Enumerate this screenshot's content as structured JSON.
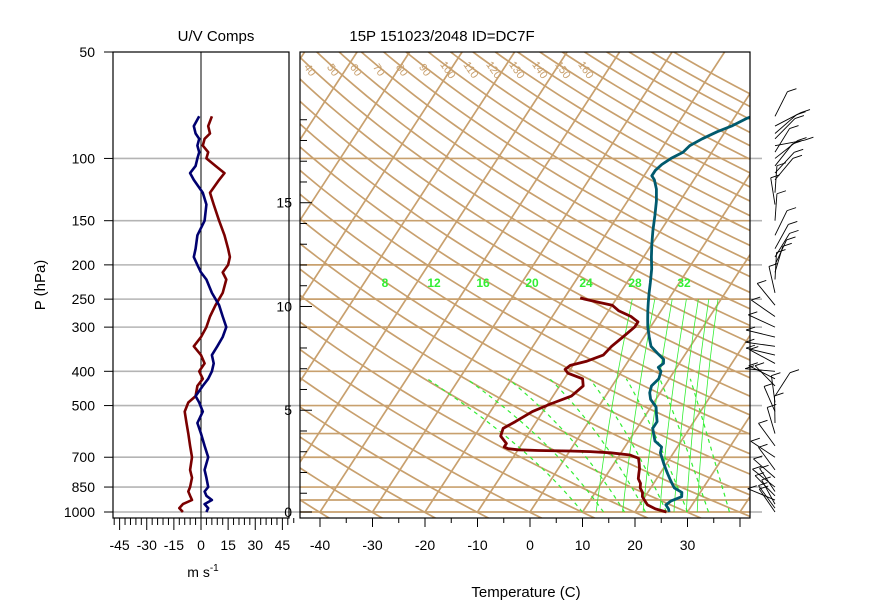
{
  "titles": {
    "left_title": "U/V Comps",
    "right_title": "15P 151023/2048 ID=DC7F"
  },
  "colors": {
    "grid_tan": "#c8a06e",
    "u_comp": "#7a0000",
    "v_comp": "#000070",
    "temperature": "#7a0000",
    "dewpoint": "#005a6e",
    "mixing_ratio": "#33ee33",
    "barbs": "#000000",
    "pressure_lines": "#b4b4b4"
  },
  "chart_data": [
    {
      "type": "line",
      "name": "uv-components",
      "title": "U/V Comps",
      "ylabel": "P (hPa)",
      "xlabel": "m s",
      "xlabel_superscript": "-1",
      "xlim": [
        -50,
        50
      ],
      "ylim": [
        1000,
        50
      ],
      "log_y": true,
      "x_ticks": [
        "-45",
        "-30",
        "-15",
        "0",
        "15",
        "30",
        "45"
      ],
      "y_ticks": [
        "50",
        "100",
        "150",
        "200",
        "250",
        "300",
        "400",
        "500",
        "700",
        "850",
        "1000"
      ],
      "series": [
        {
          "key": "u",
          "points": [
            [
              -10,
              1000
            ],
            [
              -12,
              975
            ],
            [
              -10,
              950
            ],
            [
              -5,
              925
            ],
            [
              -6,
              900
            ],
            [
              -7,
              875
            ],
            [
              -6,
              850
            ],
            [
              -5,
              800
            ],
            [
              -6,
              760
            ],
            [
              -5,
              700
            ],
            [
              -6,
              650
            ],
            [
              -7,
              600
            ],
            [
              -8,
              560
            ],
            [
              -9,
              520
            ],
            [
              -7,
              490
            ],
            [
              -3,
              470
            ],
            [
              -2,
              440
            ],
            [
              1,
              420
            ],
            [
              -1,
              400
            ],
            [
              2,
              380
            ],
            [
              0,
              360
            ],
            [
              -4,
              340
            ],
            [
              0,
              320
            ],
            [
              3,
              300
            ],
            [
              5,
              280
            ],
            [
              8,
              260
            ],
            [
              12,
              240
            ],
            [
              14,
              220
            ],
            [
              12,
              210
            ],
            [
              15,
              200
            ],
            [
              16,
              190
            ],
            [
              15,
              180
            ],
            [
              13,
              165
            ],
            [
              10,
              150
            ],
            [
              7,
              135
            ],
            [
              5,
              125
            ],
            [
              10,
              115
            ],
            [
              13,
              110
            ],
            [
              8,
              105
            ],
            [
              3,
              100
            ],
            [
              4,
              96
            ],
            [
              1,
              92
            ],
            [
              2,
              88
            ],
            [
              5,
              85
            ],
            [
              4,
              81
            ],
            [
              6,
              76
            ]
          ]
        },
        {
          "key": "v",
          "points": [
            [
              3,
              1000
            ],
            [
              4,
              975
            ],
            [
              2,
              950
            ],
            [
              6,
              925
            ],
            [
              3,
              900
            ],
            [
              2,
              875
            ],
            [
              4,
              850
            ],
            [
              3,
              800
            ],
            [
              2,
              760
            ],
            [
              4,
              700
            ],
            [
              2,
              650
            ],
            [
              0,
              600
            ],
            [
              -2,
              560
            ],
            [
              1,
              520
            ],
            [
              -1,
              490
            ],
            [
              -3,
              470
            ],
            [
              1,
              440
            ],
            [
              4,
              420
            ],
            [
              6,
              400
            ],
            [
              7,
              380
            ],
            [
              6,
              360
            ],
            [
              9,
              340
            ],
            [
              12,
              320
            ],
            [
              14,
              300
            ],
            [
              12,
              280
            ],
            [
              10,
              260
            ],
            [
              6,
              240
            ],
            [
              3,
              220
            ],
            [
              0,
              210
            ],
            [
              -2,
              200
            ],
            [
              -4,
              190
            ],
            [
              -3,
              180
            ],
            [
              -2,
              165
            ],
            [
              2,
              150
            ],
            [
              3,
              135
            ],
            [
              1,
              125
            ],
            [
              -4,
              115
            ],
            [
              -6,
              110
            ],
            [
              -3,
              105
            ],
            [
              -2,
              100
            ],
            [
              -1,
              96
            ],
            [
              -2,
              92
            ],
            [
              -1,
              88
            ],
            [
              -3,
              85
            ],
            [
              -4,
              81
            ],
            [
              -1,
              76
            ]
          ]
        }
      ]
    },
    {
      "type": "line",
      "name": "skew-t",
      "title": "15P 151023/2048 ID=DC7F",
      "xlabel": "Temperature (C)",
      "xlim": [
        -45,
        40
      ],
      "ylim": [
        1000,
        50
      ],
      "log_y": true,
      "x_ticks": [
        "-40",
        "-30",
        "-20",
        "-10",
        "0",
        "10",
        "20",
        "30"
      ],
      "height_km_ticks": [
        "0",
        "5",
        "10",
        "15"
      ],
      "dry_adiabat_labels": [
        "40",
        "50",
        "60",
        "70",
        "80",
        "90",
        "100",
        "110",
        "120",
        "130",
        "140",
        "150",
        "160"
      ],
      "mixing_ratio_labels": [
        "8",
        "12",
        "16",
        "20",
        "24",
        "28",
        "32"
      ],
      "series": [
        {
          "key": "temperature",
          "points": [
            [
              26,
              1000
            ],
            [
              23.5,
              980
            ],
            [
              21.5,
              955
            ],
            [
              20.5,
              930
            ],
            [
              19.5,
              905
            ],
            [
              19,
              880
            ],
            [
              18,
              855
            ],
            [
              17.5,
              830
            ],
            [
              16.5,
              805
            ],
            [
              16,
              780
            ],
            [
              15.5,
              755
            ],
            [
              14.8,
              730
            ],
            [
              14,
              705
            ],
            [
              12,
              690
            ],
            [
              8,
              680
            ],
            [
              4,
              675
            ],
            [
              0,
              672
            ],
            [
              -6,
              670
            ],
            [
              -10,
              667
            ],
            [
              -12,
              662
            ],
            [
              -13,
              655
            ],
            [
              -13,
              640
            ],
            [
              -14,
              625
            ],
            [
              -15,
              610
            ],
            [
              -15.5,
              580
            ],
            [
              -14,
              555
            ],
            [
              -12,
              520
            ],
            [
              -9.5,
              495
            ],
            [
              -6.5,
              470
            ],
            [
              -5.5,
              440
            ],
            [
              -6.5,
              420
            ],
            [
              -10,
              405
            ],
            [
              -11,
              395
            ],
            [
              -10.5,
              385
            ],
            [
              -8,
              375
            ],
            [
              -5.5,
              360
            ],
            [
              -5,
              340
            ],
            [
              -4,
              320
            ],
            [
              -3,
              300
            ],
            [
              -3,
              290
            ],
            [
              -5,
              280
            ],
            [
              -8,
              270
            ],
            [
              -10,
              260
            ],
            [
              -13,
              255
            ],
            [
              -16,
              250
            ],
            [
              -17,
              248
            ]
          ]
        },
        {
          "key": "dewpoint",
          "points": [
            [
              26.5,
              1000
            ],
            [
              26,
              980
            ],
            [
              25,
              955
            ],
            [
              25.5,
              930
            ],
            [
              27,
              905
            ],
            [
              26.5,
              880
            ],
            [
              24.5,
              855
            ],
            [
              23.5,
              830
            ],
            [
              22.5,
              805
            ],
            [
              21.5,
              780
            ],
            [
              20.5,
              755
            ],
            [
              19.5,
              730
            ],
            [
              18.5,
              705
            ],
            [
              17.5,
              680
            ],
            [
              17,
              655
            ],
            [
              15,
              630
            ],
            [
              14,
              605
            ],
            [
              13,
              580
            ],
            [
              13,
              555
            ],
            [
              12,
              530
            ],
            [
              11,
              505
            ],
            [
              9,
              480
            ],
            [
              8,
              460
            ],
            [
              7.5,
              440
            ],
            [
              8,
              420
            ],
            [
              7.5,
              400
            ],
            [
              6.5,
              390
            ],
            [
              7,
              380
            ],
            [
              6.5,
              370
            ],
            [
              4.5,
              355
            ],
            [
              2.5,
              340
            ],
            [
              1,
              320
            ],
            [
              -0.5,
              300
            ],
            [
              -1.5,
              285
            ],
            [
              -2.5,
              270
            ],
            [
              -3.5,
              255
            ],
            [
              -4.5,
              240
            ],
            [
              -5.5,
              225
            ],
            [
              -7,
              205
            ],
            [
              -8.5,
              190
            ],
            [
              -10,
              175
            ],
            [
              -11.5,
              160
            ],
            [
              -13,
              145
            ],
            [
              -14.5,
              132
            ],
            [
              -16,
              122
            ],
            [
              -17.5,
              115
            ],
            [
              -18.5,
              112
            ],
            [
              -18.5,
              108
            ],
            [
              -18,
              104
            ],
            [
              -17,
              100
            ],
            [
              -15.5,
              96
            ],
            [
              -15,
              92
            ],
            [
              -13.5,
              88
            ],
            [
              -11.5,
              84
            ],
            [
              -9.5,
              81
            ],
            [
              -7.5,
              77
            ],
            [
              -6,
              75
            ]
          ]
        }
      ]
    }
  ]
}
